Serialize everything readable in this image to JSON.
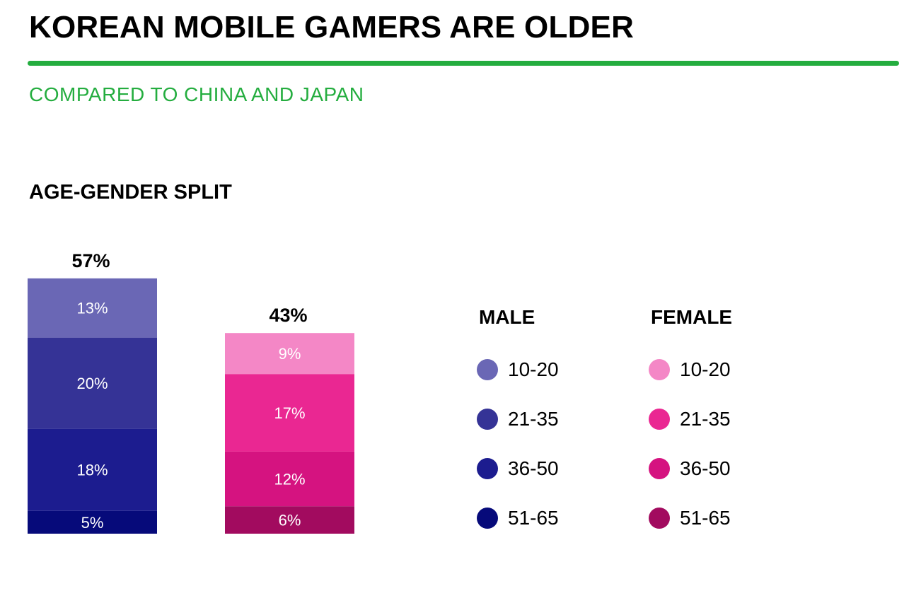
{
  "header": {
    "title": "KOREAN MOBILE GAMERS ARE OLDER",
    "subtitle": "COMPARED TO CHINA AND JAPAN",
    "accent_color": "#24ad3f"
  },
  "section_title": "AGE-GENDER SPLIT",
  "legend": {
    "male_heading": "MALE",
    "female_heading": "FEMALE",
    "male": [
      {
        "label": "10-20",
        "color": "#6a67b5"
      },
      {
        "label": "21-35",
        "color": "#353396"
      },
      {
        "label": "36-50",
        "color": "#1c1c8f"
      },
      {
        "label": "51-65",
        "color": "#060a7a"
      }
    ],
    "female": [
      {
        "label": "10-20",
        "color": "#f487c6"
      },
      {
        "label": "21-35",
        "color": "#ea2792"
      },
      {
        "label": "36-50",
        "color": "#d51380"
      },
      {
        "label": "51-65",
        "color": "#a20b5f"
      }
    ]
  },
  "chart_data": {
    "type": "bar",
    "stacked": true,
    "categories": [
      "10-20",
      "21-35",
      "36-50",
      "51-65"
    ],
    "series": [
      {
        "name": "MALE",
        "total": 57,
        "total_label": "57%",
        "values": [
          13,
          20,
          18,
          5
        ],
        "labels": [
          "13%",
          "20%",
          "18%",
          "5%"
        ],
        "colors": [
          "#6a67b5",
          "#353396",
          "#1c1c8f",
          "#060a7a"
        ]
      },
      {
        "name": "FEMALE",
        "total": 43,
        "total_label": "43%",
        "values": [
          9,
          17,
          12,
          6
        ],
        "labels": [
          "9%",
          "17%",
          "12%",
          "6%"
        ],
        "colors": [
          "#f487c6",
          "#ea2792",
          "#d51380",
          "#a20b5f"
        ]
      }
    ],
    "grid": false,
    "legend_position": "right"
  }
}
